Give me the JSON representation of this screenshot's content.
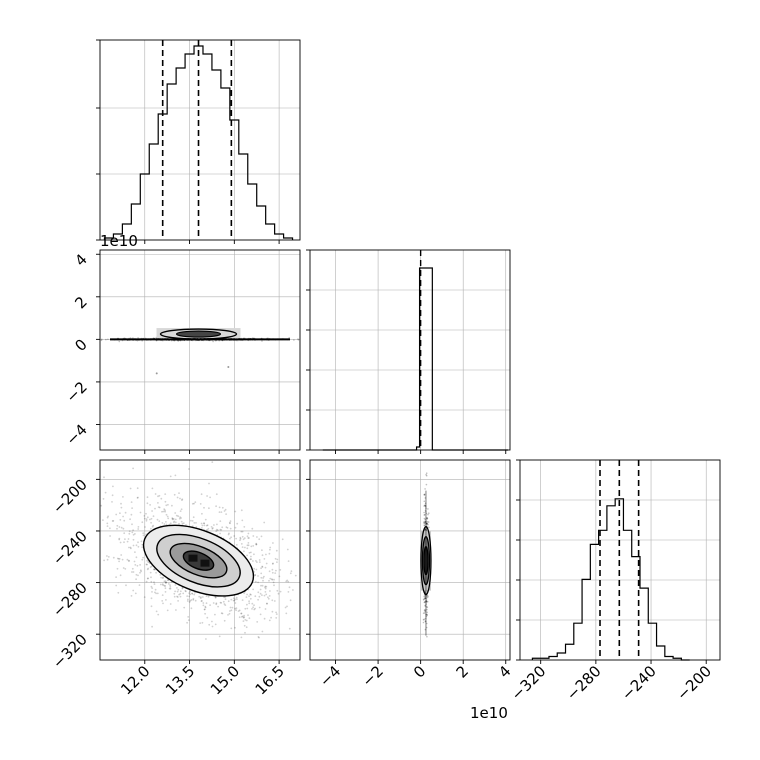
{
  "chart_data": [
    {
      "panel": "hist-param1",
      "type": "bar",
      "style": "step-histogram",
      "x": [
        10.8,
        11.1,
        11.4,
        11.7,
        12.0,
        12.3,
        12.6,
        12.9,
        13.2,
        13.5,
        13.8,
        14.1,
        14.4,
        14.7,
        15.0,
        15.3,
        15.6,
        15.9,
        16.2,
        16.5,
        16.8
      ],
      "values": [
        1,
        3,
        8,
        18,
        33,
        48,
        63,
        78,
        86,
        93,
        97,
        93,
        85,
        76,
        60,
        43,
        28,
        17,
        8,
        3,
        1
      ],
      "quantile_lines": [
        12.6,
        13.8,
        14.9
      ],
      "xlim": [
        10.5,
        17.2
      ],
      "grid": true
    },
    {
      "panel": "hist-param2",
      "type": "bar",
      "style": "step-histogram",
      "x": [
        -4.5,
        -4.0,
        -3.5,
        -3.0,
        -2.5,
        -2.0,
        -1.5,
        -1.0,
        -0.5,
        0.0,
        0.5,
        1.0,
        1.5,
        2.0,
        2.5,
        3.0,
        3.5,
        4.0
      ],
      "values": [
        0,
        0,
        0,
        0,
        0,
        0,
        0,
        0,
        0,
        2,
        100,
        0,
        0,
        0,
        0,
        0,
        0,
        0
      ],
      "quantile_lines": [
        0.0,
        0.05,
        0.1
      ],
      "xlim": [
        -5.2,
        4.2
      ],
      "offset": "1e10",
      "grid": true
    },
    {
      "panel": "hist-param3",
      "type": "bar",
      "style": "step-histogram",
      "x": [
        -323,
        -317,
        -311,
        -305,
        -299,
        -293,
        -287,
        -281,
        -275,
        -269,
        -263,
        -257,
        -251,
        -245,
        -239,
        -233,
        -227,
        -221,
        -215
      ],
      "values": [
        1,
        1,
        2,
        4,
        9,
        21,
        46,
        66,
        74,
        88,
        92,
        74,
        59,
        41,
        21,
        8,
        2,
        1,
        0
      ],
      "quantile_lines": [
        -277,
        -263,
        -249
      ],
      "xlim": [
        -335,
        -190
      ],
      "grid": true
    },
    {
      "panel": "scatter-param1-param2",
      "type": "scatter",
      "style": "2d-density-contour",
      "center": [
        13.8,
        0.25
      ],
      "xlim": [
        10.5,
        17.2
      ],
      "ylim": [
        -5.2,
        4.2
      ],
      "y_offset": "1e10",
      "grid": true
    },
    {
      "panel": "scatter-param1-param3",
      "type": "scatter",
      "style": "2d-density-contour",
      "center": [
        13.8,
        -263
      ],
      "correlation": "negative",
      "xlim": [
        10.5,
        17.2
      ],
      "ylim": [
        -340,
        -185
      ],
      "grid": true
    },
    {
      "panel": "scatter-param2-param3",
      "type": "scatter",
      "style": "2d-density-contour",
      "center": [
        0.25,
        -263
      ],
      "xlim": [
        -5.2,
        4.2
      ],
      "ylim": [
        -340,
        -185
      ],
      "x_offset": "1e10",
      "grid": true
    }
  ],
  "ticks": {
    "p1": [
      "12.0",
      "13.5",
      "15.0",
      "16.5"
    ],
    "p2": [
      "−4",
      "−2",
      "0",
      "2",
      "4"
    ],
    "p3": [
      "−320",
      "−280",
      "−240",
      "−200"
    ]
  },
  "offsets": {
    "p2_y": "1e10",
    "p2_x": "1e10"
  }
}
